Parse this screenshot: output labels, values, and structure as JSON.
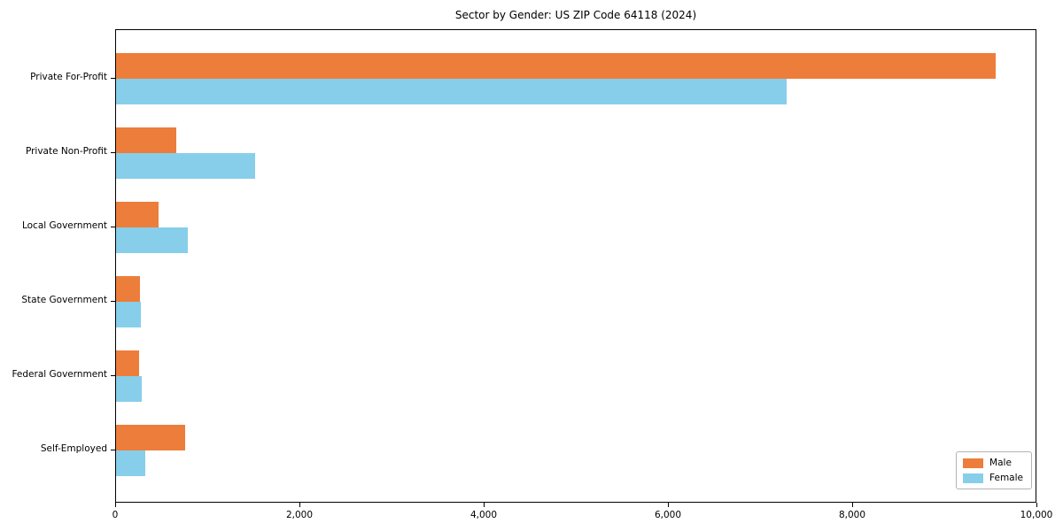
{
  "title": "Sector by Gender: US ZIP Code 64118 (2024)",
  "chart_data": {
    "type": "bar",
    "orientation": "horizontal",
    "title": "Sector by Gender: US ZIP Code 64118 (2024)",
    "categories": [
      "Private For-Profit",
      "Private Non-Profit",
      "Local Government",
      "State Government",
      "Federal Government",
      "Self-Employed"
    ],
    "series": [
      {
        "name": "Male",
        "color": "#ED7D3A",
        "values": [
          9550,
          650,
          465,
          255,
          250,
          750
        ]
      },
      {
        "name": "Female",
        "color": "#87CEEB",
        "values": [
          7280,
          1510,
          780,
          265,
          280,
          315
        ]
      }
    ],
    "xlabel": "",
    "ylabel": "",
    "xlim": [
      0,
      10000
    ],
    "x_ticks": [
      0,
      2000,
      4000,
      6000,
      8000,
      10000
    ],
    "x_tick_labels": [
      "0",
      "2,000",
      "4,000",
      "6,000",
      "8,000",
      "10,000"
    ],
    "grid": false,
    "legend_position": "lower right",
    "background_color": "#ffffff",
    "spine_color": "#000000"
  }
}
